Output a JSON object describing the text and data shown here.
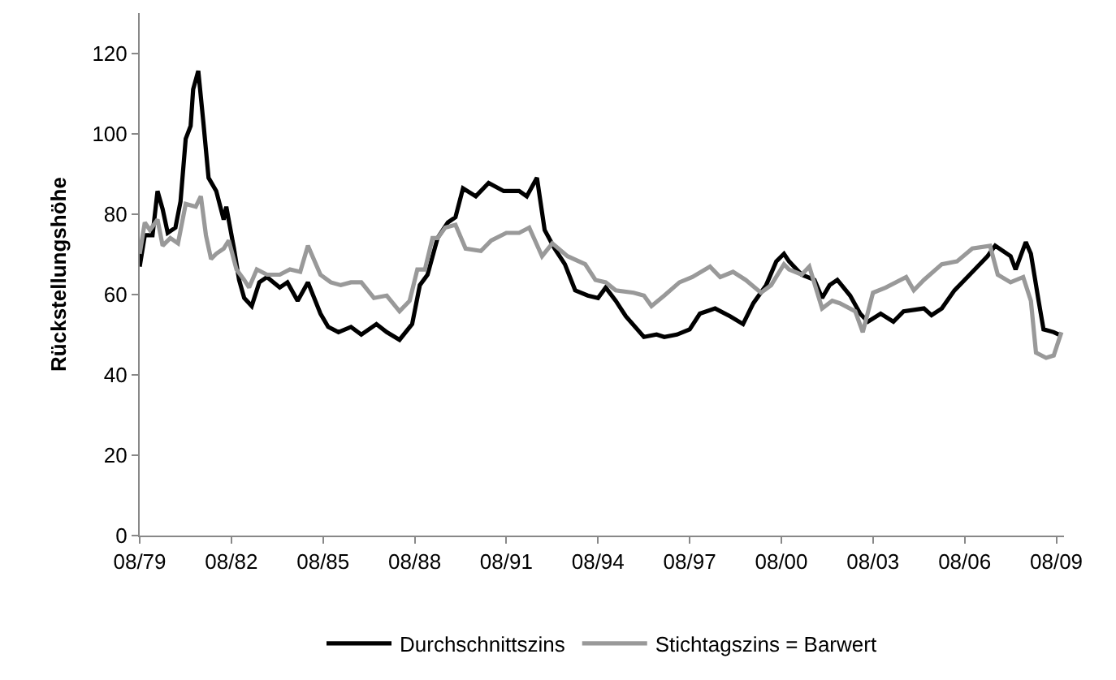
{
  "chart_data": {
    "type": "line",
    "ylabel": "Rückstellungshöhe",
    "xlim": [
      "1979-08",
      "2009-11"
    ],
    "ylim": [
      0,
      130
    ],
    "xticks": [
      {
        "value": "1979-08",
        "label": "08/79"
      },
      {
        "value": "1982-08",
        "label": "08/82"
      },
      {
        "value": "1985-08",
        "label": "08/85"
      },
      {
        "value": "1988-08",
        "label": "08/88"
      },
      {
        "value": "1991-08",
        "label": "08/91"
      },
      {
        "value": "1994-08",
        "label": "08/94"
      },
      {
        "value": "1997-08",
        "label": "08/97"
      },
      {
        "value": "2000-08",
        "label": "08/00"
      },
      {
        "value": "2003-08",
        "label": "08/03"
      },
      {
        "value": "2006-08",
        "label": "08/06"
      },
      {
        "value": "2009-08",
        "label": "08/09"
      }
    ],
    "yticks": [
      0,
      20,
      40,
      60,
      80,
      100,
      120
    ],
    "legend": "bottom",
    "marker": "none",
    "line_style": "solid",
    "series": [
      {
        "name": "Durchschnittszins",
        "color": "#000000",
        "x": [
          "1979-08",
          "1979-10",
          "1980-01",
          "1980-03",
          "1980-05",
          "1980-07",
          "1980-10",
          "1980-12",
          "1981-02",
          "1981-04",
          "1981-05",
          "1981-07",
          "1981-09",
          "1981-11",
          "1982-02",
          "1982-05",
          "1982-06",
          "1982-09",
          "1982-11",
          "1983-01",
          "1983-04",
          "1983-07",
          "1983-10",
          "1984-03",
          "1984-06",
          "1984-10",
          "1985-02",
          "1985-07",
          "1985-10",
          "1986-02",
          "1986-07",
          "1986-11",
          "1987-05",
          "1987-09",
          "1988-02",
          "1988-07",
          "1988-10",
          "1989-01",
          "1989-05",
          "1989-09",
          "1989-12",
          "1990-03",
          "1990-08",
          "1991-01",
          "1991-07",
          "1992-01",
          "1992-04",
          "1992-08",
          "1992-11",
          "1993-03",
          "1993-07",
          "1993-11",
          "1994-04",
          "1994-08",
          "1994-11",
          "1995-03",
          "1995-07",
          "1996-02",
          "1996-07",
          "1996-10",
          "1997-03",
          "1997-08",
          "1997-12",
          "1998-06",
          "1998-12",
          "1999-05",
          "1999-09",
          "2000-02",
          "2000-06",
          "2000-09",
          "2000-11",
          "2001-04",
          "2001-09",
          "2001-12",
          "2002-03",
          "2002-06",
          "2002-11",
          "2003-03",
          "2003-06",
          "2003-11",
          "2004-04",
          "2004-08",
          "2005-04",
          "2005-07",
          "2005-11",
          "2006-04",
          "2006-10",
          "2007-05",
          "2007-08",
          "2008-02",
          "2008-04",
          "2008-08",
          "2008-10",
          "2009-01",
          "2009-03",
          "2009-07",
          "2009-09"
        ],
        "values": [
          66.9,
          74.7,
          74.7,
          85.7,
          81.2,
          75.3,
          76.6,
          83.1,
          98.7,
          101.9,
          111,
          115.6,
          102.6,
          89,
          85.7,
          78.6,
          81.8,
          71.4,
          63.6,
          59.1,
          57.1,
          63,
          64.3,
          61.7,
          63,
          58.4,
          63,
          55.2,
          51.9,
          50.6,
          51.9,
          50,
          52.6,
          50.6,
          48.7,
          52.6,
          62.3,
          64.9,
          74,
          77.9,
          79.2,
          86.4,
          84.4,
          87.7,
          85.7,
          85.7,
          84.4,
          89,
          76,
          71.4,
          67.5,
          61,
          59.7,
          59.1,
          61.7,
          58.4,
          54.5,
          49.4,
          50,
          49.4,
          50,
          51.3,
          55.2,
          56.5,
          54.5,
          52.6,
          57.8,
          62.3,
          68.2,
          70.1,
          68.2,
          64.9,
          63.6,
          59.1,
          62.3,
          63.6,
          59.7,
          55.2,
          53.2,
          55.2,
          53.2,
          55.8,
          56.5,
          54.8,
          56.5,
          61,
          64.9,
          69.5,
          72.1,
          69.5,
          66.2,
          73,
          70.1,
          58.4,
          51.3,
          50.6,
          50
        ]
      },
      {
        "name": "Stichtagszins = Barwert",
        "color": "#999999",
        "x": [
          "1979-08",
          "1979-10",
          "1979-12",
          "1980-03",
          "1980-05",
          "1980-08",
          "1980-11",
          "1981-02",
          "1981-06",
          "1981-08",
          "1981-10",
          "1981-12",
          "1982-02",
          "1982-05",
          "1982-07",
          "1982-10",
          "1983-01",
          "1983-03",
          "1983-06",
          "1983-10",
          "1984-03",
          "1984-07",
          "1984-11",
          "1985-02",
          "1985-07",
          "1985-11",
          "1986-03",
          "1986-07",
          "1986-11",
          "1987-04",
          "1987-09",
          "1988-02",
          "1988-06",
          "1988-09",
          "1988-12",
          "1989-03",
          "1989-05",
          "1989-08",
          "1989-12",
          "1990-04",
          "1990-10",
          "1991-02",
          "1991-08",
          "1992-01",
          "1992-05",
          "1992-10",
          "1993-02",
          "1993-08",
          "1994-03",
          "1994-07",
          "1994-11",
          "1995-03",
          "1995-10",
          "1996-02",
          "1996-05",
          "1996-10",
          "1997-04",
          "1997-09",
          "1998-04",
          "1998-08",
          "1999-01",
          "1999-06",
          "1999-12",
          "2000-04",
          "2000-09",
          "2000-11",
          "2001-04",
          "2001-07",
          "2001-12",
          "2002-04",
          "2002-07",
          "2003-01",
          "2003-04",
          "2003-08",
          "2004-01",
          "2004-09",
          "2004-12",
          "2005-04",
          "2005-11",
          "2006-05",
          "2006-11",
          "2007-06",
          "2007-09",
          "2008-02",
          "2008-07",
          "2008-10",
          "2008-12",
          "2009-04",
          "2009-07",
          "2009-10"
        ],
        "values": [
          70.1,
          77.9,
          76,
          78.6,
          72.1,
          74,
          72.7,
          82.5,
          81.8,
          84.4,
          74.7,
          68.8,
          70.1,
          71.4,
          73.4,
          66.2,
          63.6,
          61.7,
          66.2,
          64.9,
          64.9,
          66.2,
          65.6,
          72.1,
          64.9,
          63,
          62.3,
          63,
          63,
          59.1,
          59.7,
          55.8,
          58.4,
          66.2,
          66.2,
          74,
          74,
          76.6,
          77.3,
          71.4,
          70.8,
          73.4,
          75.3,
          75.3,
          76.6,
          69.5,
          72.7,
          69.5,
          67.5,
          63.6,
          63,
          61,
          60.4,
          59.7,
          57.1,
          59.7,
          63,
          64.3,
          66.9,
          64.3,
          65.6,
          63.6,
          60.4,
          62.3,
          67.5,
          66.2,
          64.9,
          66.9,
          56.5,
          58.4,
          57.8,
          55.8,
          50.6,
          60.4,
          61.7,
          64.3,
          61,
          63.6,
          67.5,
          68.2,
          71.4,
          72.1,
          64.9,
          63,
          64.3,
          58.4,
          45.5,
          44.2,
          44.8,
          50.6
        ]
      }
    ]
  }
}
